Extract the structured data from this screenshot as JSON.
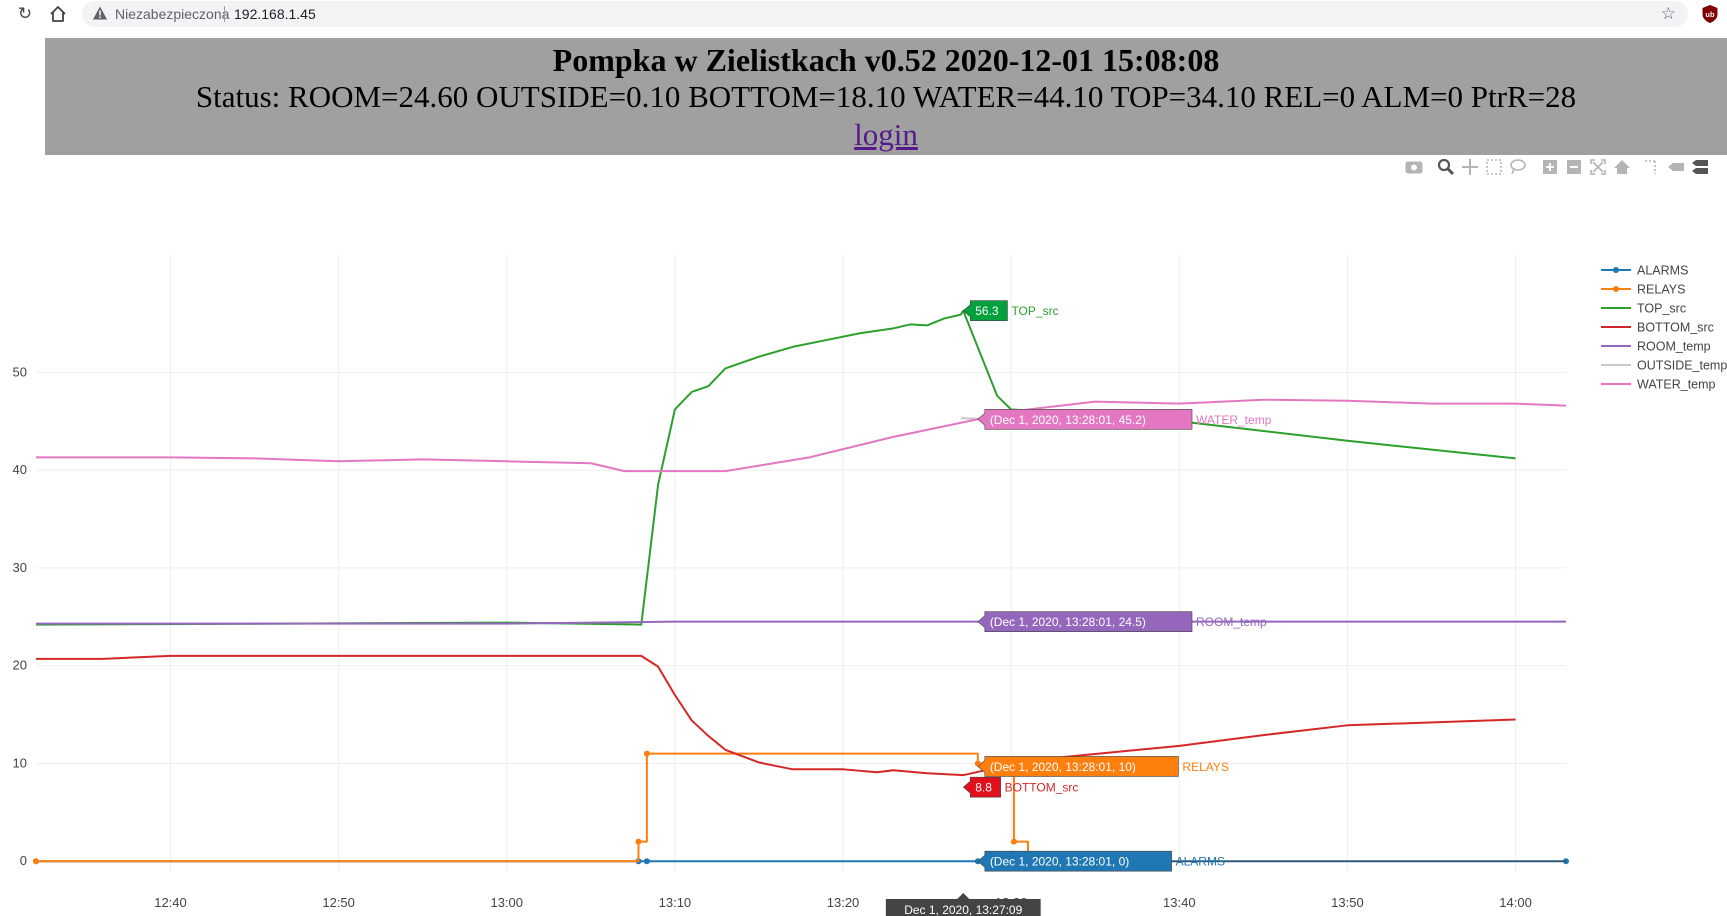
{
  "browser": {
    "security_label": "Niezabezpieczona",
    "url": "192.168.1.45",
    "icons": [
      "reload-icon",
      "home-icon",
      "warning-icon",
      "star-icon",
      "ublock-icon"
    ]
  },
  "header": {
    "title": "Pompka w Zielistkach v0.52 2020-12-01 15:08:08",
    "status": "Status: ROOM=24.60 OUTSIDE=0.10 BOTTOM=18.10 WATER=44.10 TOP=34.10 REL=0 ALM=0 PtrR=28",
    "login_label": "login",
    "background": "#a0a0a0",
    "link_color": "#551a8b"
  },
  "modebar": {
    "icons": [
      "camera-icon",
      "zoom-icon",
      "pan-icon",
      "box-select-icon",
      "lasso-select-icon",
      "zoom-in-icon",
      "zoom-out-icon",
      "autoscale-icon",
      "reset-axes-icon",
      "spike-lines-icon",
      "hover-closest-icon",
      "hover-compare-icon"
    ]
  },
  "chart_data": {
    "type": "line",
    "title": "",
    "xlabel": "",
    "ylabel": "",
    "x_range": [
      "2020-12-01 12:32:00",
      "2020-12-01 14:03:00"
    ],
    "ylim": [
      -1,
      62
    ],
    "x_ticks": [
      "12:40",
      "12:50",
      "13:00",
      "13:10",
      "13:20",
      "13:30",
      "13:40",
      "13:50",
      "14:00"
    ],
    "x_tick_date_label": "Dec 1, 2020",
    "y_ticks": [
      0,
      10,
      20,
      30,
      40,
      50
    ],
    "grid": true,
    "legend_position": "right",
    "series": [
      {
        "name": "ALARMS",
        "color": "#1f77b4",
        "mode": "lines+markers",
        "points": [
          [
            "12:32",
            0
          ],
          [
            "13:07:50",
            0
          ],
          [
            "13:08:20",
            0
          ],
          [
            "13:28:01",
            0
          ],
          [
            "14:03",
            0
          ]
        ]
      },
      {
        "name": "RELAYS",
        "color": "#ff7f0e",
        "mode": "lines+markers",
        "line_shape": "hv",
        "points": [
          [
            "12:32",
            0
          ],
          [
            "13:07:50",
            2
          ],
          [
            "13:08:20",
            11
          ],
          [
            "13:28:01",
            10
          ],
          [
            "13:30:10",
            2
          ],
          [
            "13:31:00",
            0
          ]
        ]
      },
      {
        "name": "TOP_src",
        "color": "#2ca02c",
        "mode": "lines",
        "points": [
          [
            "12:32",
            24.2
          ],
          [
            "13:00",
            24.4
          ],
          [
            "13:08",
            24.2
          ],
          [
            "13:09",
            38.5
          ],
          [
            "13:10",
            46.2
          ],
          [
            "13:11",
            48.0
          ],
          [
            "13:12",
            48.6
          ],
          [
            "13:13",
            50.4
          ],
          [
            "13:15",
            51.6
          ],
          [
            "13:17",
            52.6
          ],
          [
            "13:19",
            53.3
          ],
          [
            "13:21",
            54.0
          ],
          [
            "13:23",
            54.5
          ],
          [
            "13:24",
            54.9
          ],
          [
            "13:25",
            54.8
          ],
          [
            "13:26",
            55.5
          ],
          [
            "13:27",
            55.9
          ],
          [
            "13:27:09",
            56.3
          ],
          [
            "13:29:10",
            47.6
          ],
          [
            "13:30",
            46.2
          ],
          [
            "13:37",
            45.6
          ],
          [
            "13:45",
            44.0
          ],
          [
            "13:50",
            43.0
          ],
          [
            "14:00",
            41.2
          ]
        ]
      },
      {
        "name": "BOTTOM_src",
        "color": "#d62728",
        "mode": "lines",
        "points": [
          [
            "12:32",
            20.7
          ],
          [
            "12:36",
            20.7
          ],
          [
            "12:40",
            21.0
          ],
          [
            "13:00",
            21.0
          ],
          [
            "13:08",
            21.0
          ],
          [
            "13:09",
            19.9
          ],
          [
            "13:10",
            17.0
          ],
          [
            "13:11",
            14.4
          ],
          [
            "13:12",
            12.8
          ],
          [
            "13:13",
            11.4
          ],
          [
            "13:15",
            10.1
          ],
          [
            "13:17",
            9.4
          ],
          [
            "13:20",
            9.4
          ],
          [
            "13:22",
            9.1
          ],
          [
            "13:23",
            9.3
          ],
          [
            "13:25",
            9.0
          ],
          [
            "13:27:09",
            8.8
          ],
          [
            "13:31",
            10.3
          ],
          [
            "13:40",
            11.8
          ],
          [
            "13:45",
            12.9
          ],
          [
            "13:50",
            13.9
          ],
          [
            "14:00",
            14.5
          ]
        ]
      },
      {
        "name": "ROOM_temp",
        "color": "#9467bd",
        "mode": "lines",
        "points": [
          [
            "12:32",
            24.3
          ],
          [
            "13:00",
            24.3
          ],
          [
            "13:10",
            24.5
          ],
          [
            "13:28:01",
            24.5
          ],
          [
            "14:03",
            24.5
          ]
        ]
      },
      {
        "name": "OUTSIDE_temp",
        "color": "#c7c7c7",
        "mode": "lines",
        "points": [
          [
            "13:27",
            45.3
          ],
          [
            "13:38",
            44.8
          ]
        ]
      },
      {
        "name": "WATER_temp",
        "color": "#e377c2",
        "mode": "lines",
        "points": [
          [
            "12:32",
            41.3
          ],
          [
            "12:40",
            41.3
          ],
          [
            "12:45",
            41.2
          ],
          [
            "12:50",
            40.9
          ],
          [
            "12:55",
            41.1
          ],
          [
            "13:00",
            40.9
          ],
          [
            "13:05",
            40.7
          ],
          [
            "13:07",
            39.9
          ],
          [
            "13:10",
            39.9
          ],
          [
            "13:13",
            39.9
          ],
          [
            "13:18",
            41.3
          ],
          [
            "13:23",
            43.4
          ],
          [
            "13:28:01",
            45.2
          ],
          [
            "13:30",
            46.0
          ],
          [
            "13:35",
            47.0
          ],
          [
            "13:40",
            46.8
          ],
          [
            "13:45",
            47.2
          ],
          [
            "13:50",
            47.1
          ],
          [
            "13:55",
            46.8
          ],
          [
            "14:00",
            46.8
          ],
          [
            "14:03",
            46.6
          ]
        ]
      }
    ],
    "hover": {
      "x_label": "Dec 1, 2020, 13:27:09",
      "labels": [
        {
          "series": "TOP_src",
          "text": "56.3",
          "name": "TOP_src",
          "bg": "#00a03c"
        },
        {
          "series": "WATER_temp",
          "text": "(Dec 1, 2020, 13:28:01, 45.2)",
          "name": "WATER_temp",
          "bg": "#e377c2"
        },
        {
          "series": "ROOM_temp",
          "text": "(Dec 1, 2020, 13:28:01, 24.5)",
          "name": "ROOM_temp",
          "bg": "#9467bd"
        },
        {
          "series": "RELAYS",
          "text": "(Dec 1, 2020, 13:28:01, 10)",
          "name": "RELAYS",
          "bg": "#ff7f0e"
        },
        {
          "series": "BOTTOM_src",
          "text": "8.8",
          "name": "BOTTOM_src",
          "bg": "#e0101c"
        },
        {
          "series": "ALARMS",
          "text": "(Dec 1, 2020, 13:28:01, 0)",
          "name": "ALARMS",
          "bg": "#1f77b4"
        }
      ]
    }
  }
}
